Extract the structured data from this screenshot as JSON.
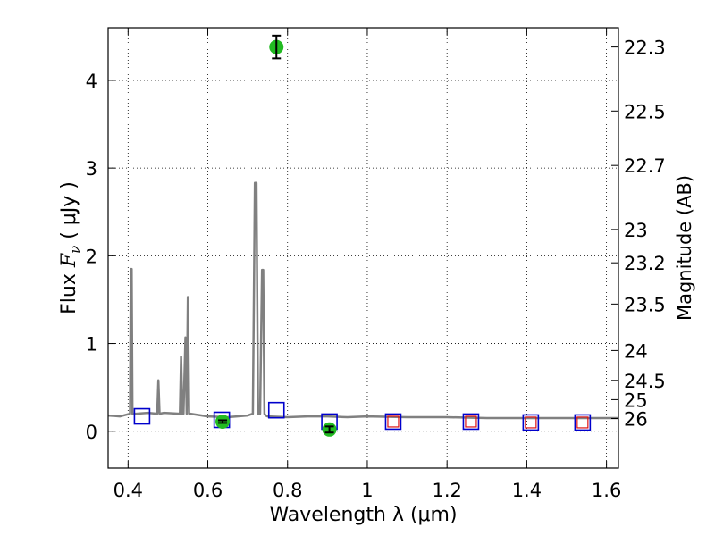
{
  "chart_data": {
    "type": "scatter",
    "title": "",
    "xlabel": "Wavelength  λ (μm)",
    "ylabel": "Flux  F_ν  ( μJy )",
    "y2label": "Magnitude (AB)",
    "xlim": [
      0.35,
      1.63
    ],
    "ylim": [
      -0.42,
      4.6
    ],
    "grid": true,
    "x_ticks": [
      "0.4",
      "0.6",
      "0.8",
      "1",
      "1.2",
      "1.4",
      "1.6"
    ],
    "x_tick_values": [
      0.4,
      0.6,
      0.8,
      1.0,
      1.2,
      1.4,
      1.6
    ],
    "y_ticks": [
      "0",
      "1",
      "2",
      "3",
      "4"
    ],
    "y_tick_values": [
      0,
      1,
      2,
      3,
      4
    ],
    "y2_ticks": [
      {
        "label": "22.3",
        "flux": 4.38
      },
      {
        "label": "22.5",
        "flux": 3.65
      },
      {
        "label": "22.7",
        "flux": 3.03
      },
      {
        "label": "23",
        "flux": 2.3
      },
      {
        "label": "23.2",
        "flux": 1.92
      },
      {
        "label": "23.5",
        "flux": 1.45
      },
      {
        "label": "24",
        "flux": 0.92
      },
      {
        "label": "24.5",
        "flux": 0.58
      },
      {
        "label": "25",
        "flux": 0.36
      },
      {
        "label": "26",
        "flux": 0.145
      }
    ],
    "colors": {
      "template": "#808080",
      "observed": "#22bb22",
      "model_blue": "#0000cc",
      "model_red": "#dd1111",
      "errorbar": "#000000"
    },
    "series": [
      {
        "kind": "template",
        "x": [
          0.35,
          0.38,
          0.405,
          0.407,
          0.409,
          0.411,
          0.42,
          0.45,
          0.473,
          0.476,
          0.479,
          0.49,
          0.53,
          0.533,
          0.536,
          0.539,
          0.544,
          0.547,
          0.55,
          0.553,
          0.556,
          0.6,
          0.65,
          0.7,
          0.713,
          0.718,
          0.722,
          0.726,
          0.731,
          0.736,
          0.739,
          0.742,
          0.745,
          0.75,
          0.8,
          0.85,
          0.9,
          0.95,
          1.0,
          1.1,
          1.2,
          1.3,
          1.4,
          1.5,
          1.63
        ],
        "y": [
          0.18,
          0.17,
          0.2,
          1.85,
          1.85,
          0.2,
          0.2,
          0.21,
          0.2,
          0.58,
          0.2,
          0.21,
          0.2,
          0.85,
          0.2,
          0.2,
          1.07,
          0.2,
          1.53,
          0.2,
          0.2,
          0.17,
          0.16,
          0.18,
          0.2,
          2.83,
          2.83,
          0.2,
          0.2,
          1.84,
          1.84,
          0.2,
          0.18,
          0.17,
          0.16,
          0.17,
          0.17,
          0.16,
          0.17,
          0.16,
          0.16,
          0.15,
          0.15,
          0.15,
          0.15
        ]
      },
      {
        "kind": "model_blue",
        "x": [
          0.435,
          0.635,
          0.772,
          0.905,
          1.065,
          1.26,
          1.41,
          1.54
        ],
        "y": [
          0.17,
          0.13,
          0.24,
          0.11,
          0.11,
          0.11,
          0.1,
          0.1
        ]
      },
      {
        "kind": "model_red",
        "x": [
          1.065,
          1.26,
          1.41,
          1.54
        ],
        "y": [
          0.11,
          0.11,
          0.1,
          0.1
        ]
      },
      {
        "kind": "observed",
        "x": [
          0.637,
          0.772,
          0.905
        ],
        "y": [
          0.11,
          4.38,
          0.02
        ],
        "yerr": [
          0.015,
          0.13,
          0.035
        ]
      }
    ]
  }
}
